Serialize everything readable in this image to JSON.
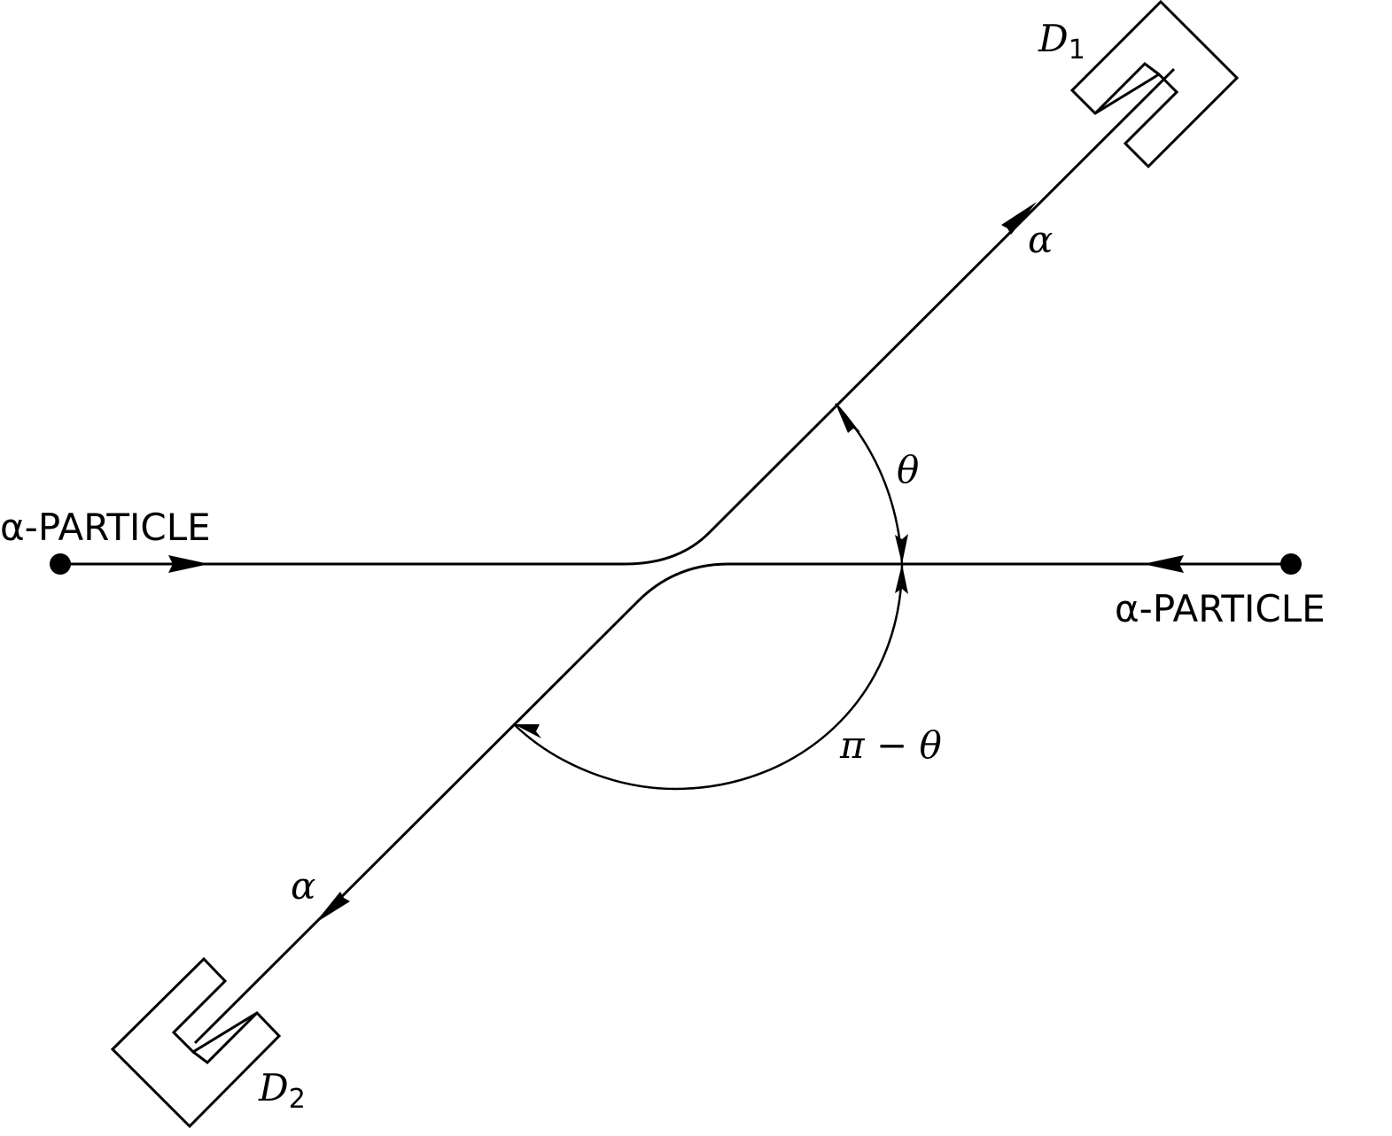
{
  "labels": {
    "left_source": "α-PARTICLE",
    "right_source": "α-PARTICLE",
    "outgoing_upper": "α",
    "outgoing_lower": "α",
    "angle_theta": "θ",
    "angle_pi_minus_theta": "π − θ",
    "detector_1_main": "D",
    "detector_1_sub": "1",
    "detector_2_main": "D",
    "detector_2_sub": "2"
  },
  "colors": {
    "stroke": "#000000",
    "background": "#ffffff"
  }
}
